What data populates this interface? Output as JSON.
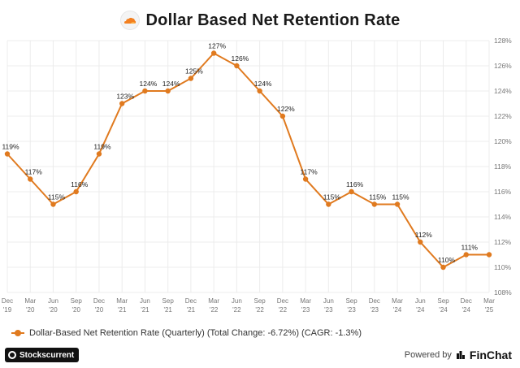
{
  "title": "Dollar Based Net Retention Rate",
  "chart_data": {
    "type": "line",
    "title": "Dollar Based Net Retention Rate",
    "categories": [
      "Dec '19",
      "Mar '20",
      "Jun '20",
      "Sep '20",
      "Dec '20",
      "Mar '21",
      "Jun '21",
      "Sep '21",
      "Dec '21",
      "Mar '22",
      "Jun '22",
      "Sep '22",
      "Dec '22",
      "Mar '23",
      "Jun '23",
      "Sep '23",
      "Dec '23",
      "Mar '24",
      "Jun '24",
      "Sep '24",
      "Dec '24",
      "Mar '25"
    ],
    "x_tick_labels": [
      [
        "Dec",
        "'19"
      ],
      [
        "Mar",
        "'20"
      ],
      [
        "Jun",
        "'20"
      ],
      [
        "Sep",
        "'20"
      ],
      [
        "Dec",
        "'20"
      ],
      [
        "Mar",
        "'21"
      ],
      [
        "Jun",
        "'21"
      ],
      [
        "Sep",
        "'21"
      ],
      [
        "Dec",
        "'21"
      ],
      [
        "Mar",
        "'22"
      ],
      [
        "Jun",
        "'22"
      ],
      [
        "Sep",
        "'22"
      ],
      [
        "Dec",
        "'22"
      ],
      [
        "Mar",
        "'23"
      ],
      [
        "Jun",
        "'23"
      ],
      [
        "Sep",
        "'23"
      ],
      [
        "Dec",
        "'23"
      ],
      [
        "Mar",
        "'24"
      ],
      [
        "Jun",
        "'24"
      ],
      [
        "Sep",
        "'24"
      ],
      [
        "Dec",
        "'24"
      ],
      [
        "Mar",
        "'25"
      ]
    ],
    "series": [
      {
        "name": "Dollar-Based Net Retention Rate (Quarterly)",
        "values": [
          119,
          117,
          115,
          116,
          119,
          123,
          124,
          124,
          125,
          127,
          126,
          124,
          122,
          117,
          115,
          116,
          115,
          115,
          112,
          110,
          111,
          111
        ],
        "data_labels": [
          "119%",
          "117%",
          "115%",
          "116%",
          "119%",
          "123%",
          "124%",
          "124%",
          "125%",
          "127%",
          "126%",
          "124%",
          "122%",
          "117%",
          "115%",
          "116%",
          "115%",
          "115%",
          "112%",
          "110%",
          "111%",
          ""
        ],
        "color": "#e07a1f"
      }
    ],
    "ylim": [
      108,
      128
    ],
    "y_ticks": [
      108,
      110,
      112,
      114,
      116,
      118,
      120,
      122,
      124,
      126,
      128
    ],
    "y_axis_position": "right",
    "y_tick_suffix": "%",
    "grid": true,
    "legend_position": "bottom-left"
  },
  "legend": {
    "text": "Dollar-Based Net Retention Rate (Quarterly) (Total Change: -6.72%) (CAGR: -1.3%)"
  },
  "footer": {
    "left_brand": "Stockscurrent",
    "powered_by": "Powered by",
    "right_brand": "FinChat"
  }
}
